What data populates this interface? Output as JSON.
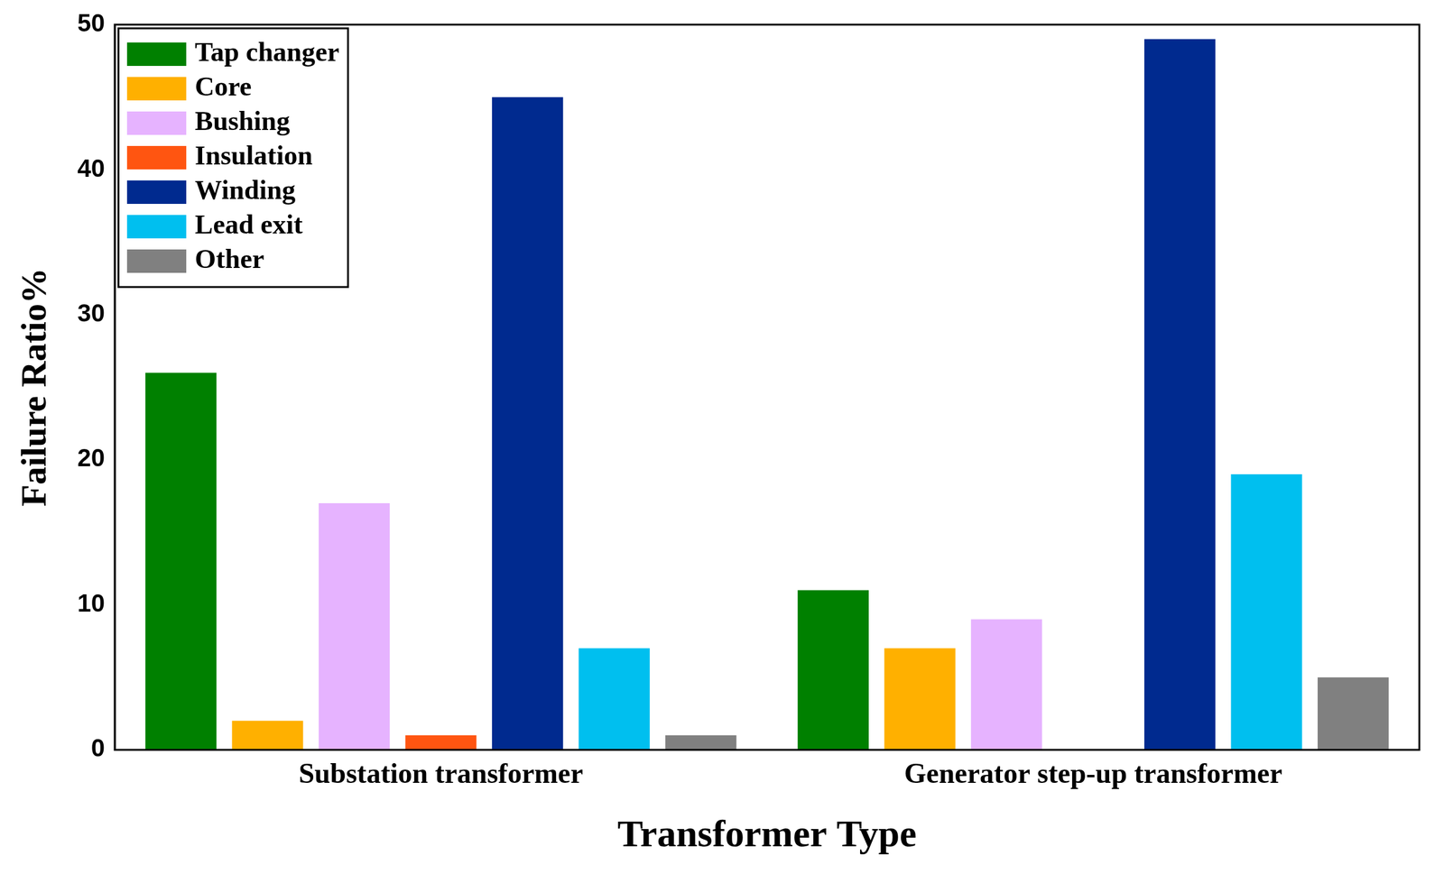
{
  "chart_data": {
    "type": "bar",
    "x_label": "Transformer Type",
    "y_label": "Failure Ratio%",
    "categories": [
      "Substation transformer",
      "Generator step-up transformer"
    ],
    "series": [
      {
        "name": "Tap changer",
        "color": "#008000",
        "values": [
          26,
          11
        ]
      },
      {
        "name": "Core",
        "color": "#ffb000",
        "values": [
          2,
          7
        ]
      },
      {
        "name": "Bushing",
        "color": "#e6b3ff",
        "values": [
          17,
          9
        ]
      },
      {
        "name": "Insulation",
        "color": "#ff5511",
        "values": [
          1,
          0
        ]
      },
      {
        "name": "Winding",
        "color": "#002a8f",
        "values": [
          45,
          49
        ]
      },
      {
        "name": "Lead exit",
        "color": "#00bfef",
        "values": [
          7,
          19
        ]
      },
      {
        "name": "Other",
        "color": "#808080",
        "values": [
          1,
          5
        ]
      }
    ],
    "ylim": [
      0,
      50
    ],
    "yticks": [
      0,
      10,
      20,
      30,
      40,
      50
    ],
    "grid": false,
    "legend": "upper left"
  }
}
